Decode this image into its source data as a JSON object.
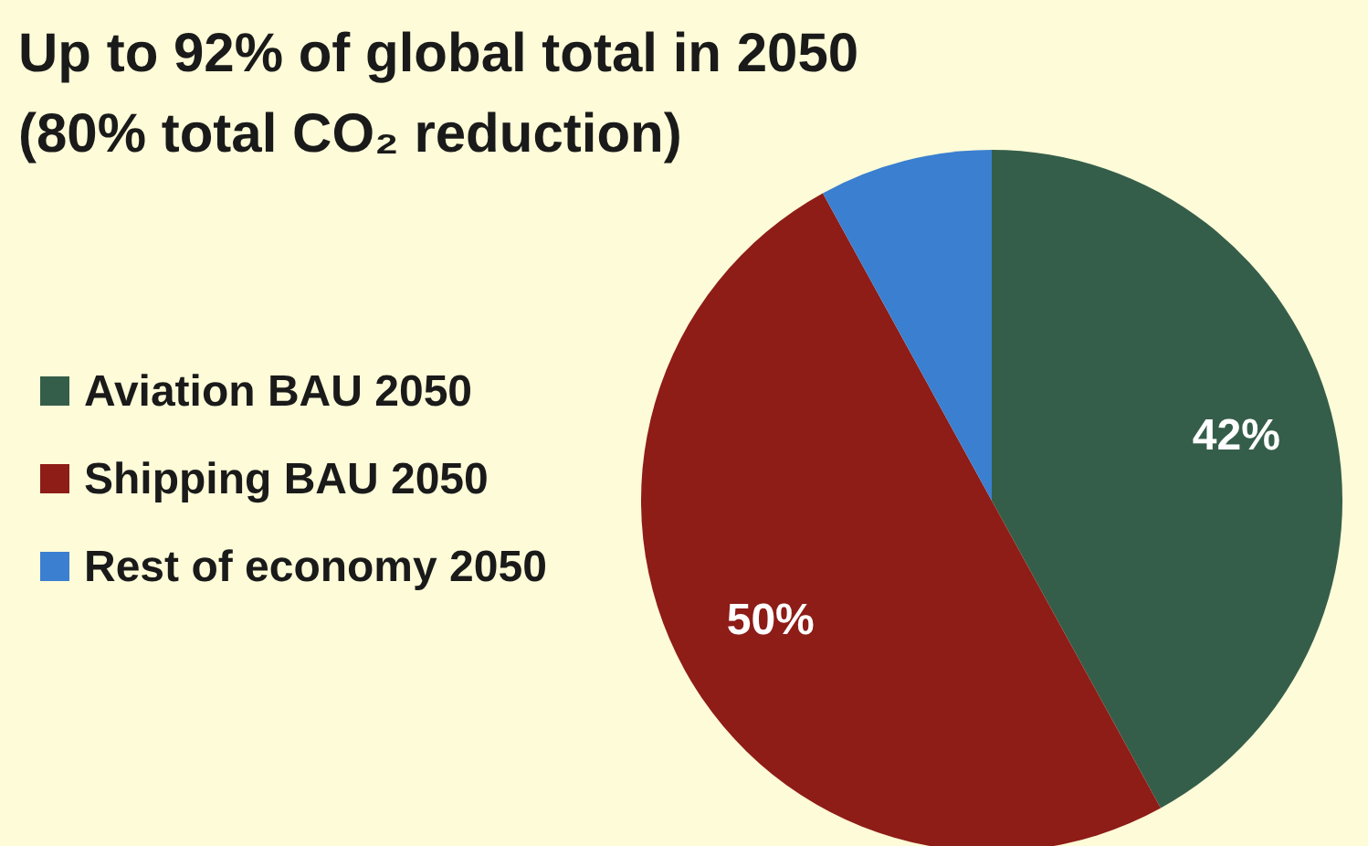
{
  "chart_data": {
    "type": "pie",
    "title": "Up to 92% of global total in 2050",
    "subtitle": "(80% total CO₂ reduction)",
    "categories": [
      "Aviation BAU 2050",
      "Shipping BAU 2050",
      "Rest of economy 2050"
    ],
    "values": [
      42,
      50,
      8
    ],
    "colors": [
      "#355e4a",
      "#8e1c17",
      "#3a7fd0"
    ],
    "value_labels": [
      "42%",
      "50%",
      null
    ],
    "legend": "left"
  }
}
